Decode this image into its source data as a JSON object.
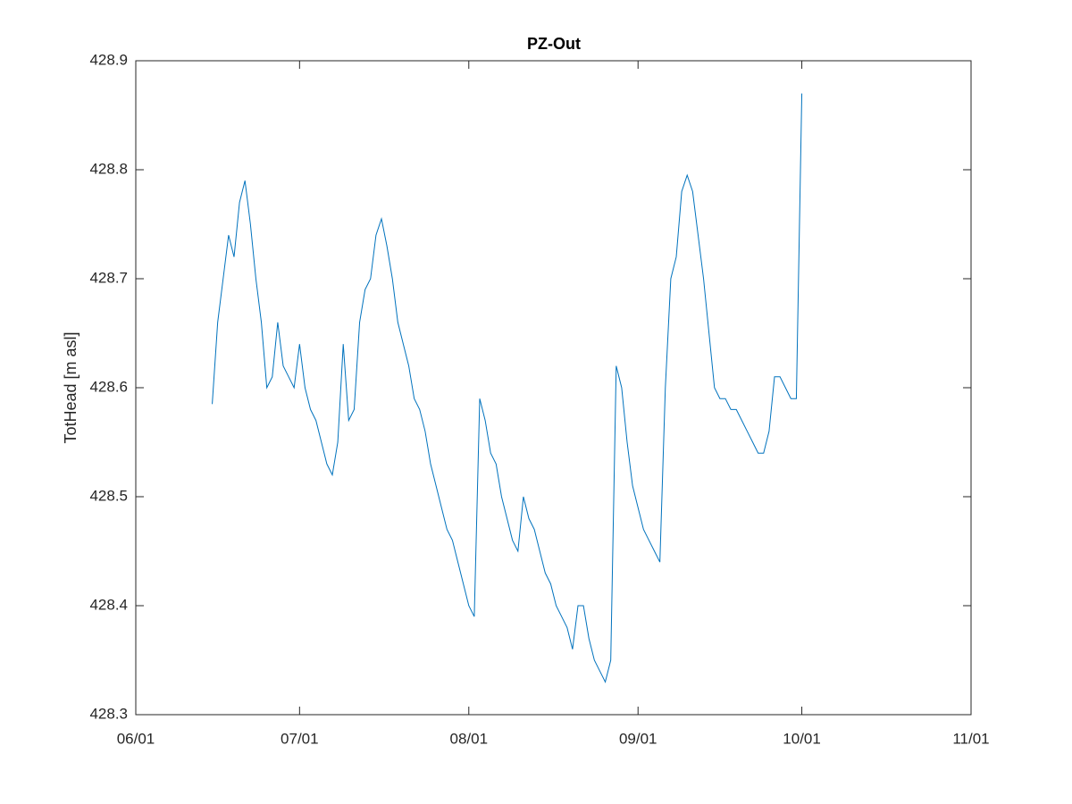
{
  "chart_data": {
    "type": "line",
    "title": "PZ-Out",
    "y_label": "TotHead [m asl]",
    "color": "#0072BD",
    "x": [
      "06/15",
      "06/16",
      "06/17",
      "06/18",
      "06/19",
      "06/20",
      "06/21",
      "06/22",
      "06/23",
      "06/24",
      "06/25",
      "06/26",
      "06/27",
      "06/28",
      "06/29",
      "06/30",
      "07/01",
      "07/02",
      "07/03",
      "07/04",
      "07/05",
      "07/06",
      "07/07",
      "07/08",
      "07/09",
      "07/10",
      "07/11",
      "07/12",
      "07/13",
      "07/14",
      "07/15",
      "07/16",
      "07/17",
      "07/18",
      "07/19",
      "07/20",
      "07/21",
      "07/22",
      "07/23",
      "07/24",
      "07/25",
      "07/26",
      "07/27",
      "07/28",
      "07/29",
      "07/30",
      "07/31",
      "08/01",
      "08/02",
      "08/03",
      "08/04",
      "08/05",
      "08/06",
      "08/07",
      "08/08",
      "08/09",
      "08/10",
      "08/11",
      "08/12",
      "08/13",
      "08/14",
      "08/15",
      "08/16",
      "08/17",
      "08/18",
      "08/19",
      "08/20",
      "08/21",
      "08/22",
      "08/23",
      "08/24",
      "08/25",
      "08/26",
      "08/27",
      "08/28",
      "08/29",
      "08/30",
      "08/31",
      "09/01",
      "09/02",
      "09/03",
      "09/04",
      "09/05",
      "09/06",
      "09/07",
      "09/08",
      "09/09",
      "09/10",
      "09/11",
      "09/12",
      "09/13",
      "09/14",
      "09/15",
      "09/16",
      "09/17",
      "09/18",
      "09/19",
      "09/20",
      "09/21",
      "09/22",
      "09/23",
      "09/24",
      "09/25",
      "09/26",
      "09/27",
      "09/28",
      "09/29",
      "09/30",
      "10/01"
    ],
    "values": [
      428.585,
      428.66,
      428.7,
      428.74,
      428.72,
      428.77,
      428.79,
      428.75,
      428.7,
      428.66,
      428.6,
      428.61,
      428.66,
      428.62,
      428.61,
      428.6,
      428.64,
      428.6,
      428.58,
      428.57,
      428.55,
      428.53,
      428.52,
      428.55,
      428.64,
      428.57,
      428.58,
      428.66,
      428.69,
      428.7,
      428.74,
      428.755,
      428.73,
      428.7,
      428.66,
      428.64,
      428.62,
      428.59,
      428.58,
      428.56,
      428.53,
      428.51,
      428.49,
      428.47,
      428.46,
      428.44,
      428.42,
      428.4,
      428.39,
      428.59,
      428.57,
      428.54,
      428.53,
      428.5,
      428.48,
      428.46,
      428.45,
      428.5,
      428.48,
      428.47,
      428.45,
      428.43,
      428.42,
      428.4,
      428.39,
      428.38,
      428.36,
      428.4,
      428.4,
      428.37,
      428.35,
      428.34,
      428.33,
      428.35,
      428.62,
      428.6,
      428.55,
      428.51,
      428.49,
      428.47,
      428.46,
      428.45,
      428.44,
      428.6,
      428.7,
      428.72,
      428.78,
      428.795,
      428.78,
      428.74,
      428.7,
      428.65,
      428.6,
      428.59,
      428.59,
      428.58,
      428.58,
      428.57,
      428.56,
      428.55,
      428.54,
      428.54,
      428.56,
      428.61,
      428.61,
      428.6,
      428.59,
      428.59,
      428.87
    ],
    "xlim": [
      "06/01",
      "11/01"
    ],
    "xticks": [
      "06/01",
      "07/01",
      "08/01",
      "09/01",
      "10/01",
      "11/01"
    ],
    "ylim": [
      428.3,
      428.9
    ],
    "yticks": [
      428.3,
      428.4,
      428.5,
      428.6,
      428.7,
      428.8,
      428.9
    ]
  }
}
